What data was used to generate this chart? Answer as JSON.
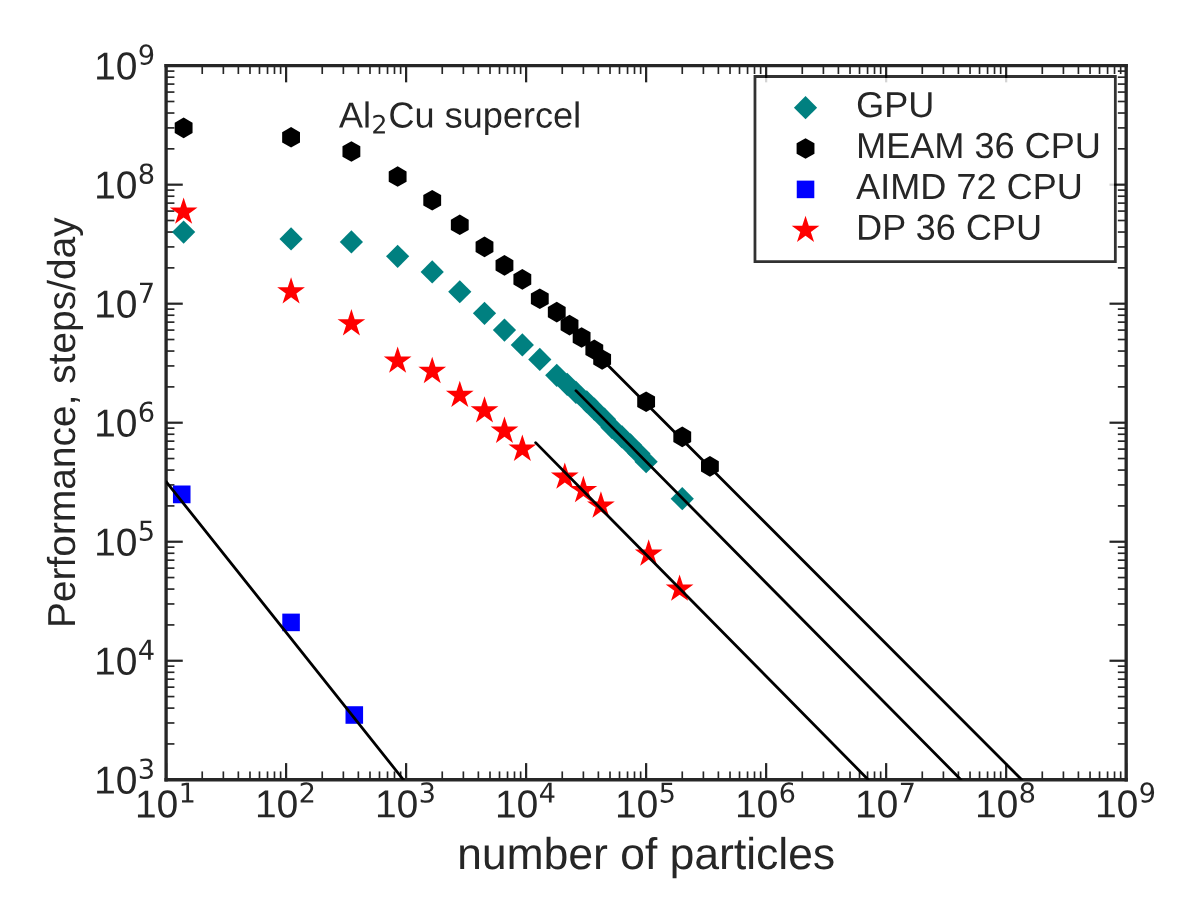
{
  "chart_data": {
    "type": "scatter",
    "xlabel": "number of particles",
    "ylabel": "Performance, steps/day",
    "annotations": [
      "Al$_{2}$Cu supercel"
    ],
    "log": "xy",
    "grid": false,
    "legend": "top right",
    "xlim": [
      10,
      1000000000
    ],
    "ylim": [
      1000,
      1000000000
    ],
    "xticks": [
      {
        "value": 10,
        "label": "10$^{1}$"
      },
      {
        "value": 100,
        "label": "10$^{2}$"
      },
      {
        "value": 1000,
        "label": "10$^{3}$"
      },
      {
        "value": 10000,
        "label": "10$^{4}$"
      },
      {
        "value": 100000,
        "label": "10$^{5}$"
      },
      {
        "value": 1000000,
        "label": "10$^{6}$"
      },
      {
        "value": 10000000,
        "label": "10$^{7}$"
      },
      {
        "value": 100000000,
        "label": "10$^{8}$"
      },
      {
        "value": 1000000000,
        "label": "10$^{9}$"
      }
    ],
    "yticks": [
      {
        "value": 1000,
        "label": "10$^{3}$"
      },
      {
        "value": 10000,
        "label": "10$^{4}$"
      },
      {
        "value": 100000,
        "label": "10$^{5}$"
      },
      {
        "value": 1000000,
        "label": "10$^{6}$"
      },
      {
        "value": 10000000,
        "label": "10$^{7}$"
      },
      {
        "value": 100000000,
        "label": "10$^{8}$"
      },
      {
        "value": 1000000000,
        "label": "10$^{9}$"
      }
    ],
    "series": [
      {
        "name": "GPU",
        "color": "#008080",
        "marker": "diamond",
        "x": [
          14,
          110,
          350,
          850,
          1650,
          2800,
          4500,
          6600,
          9300,
          13000,
          18000,
          22000,
          26000,
          32000,
          37000,
          45000,
          52000,
          63000,
          74000,
          87000,
          100000,
          200000
        ],
        "values": [
          40000000,
          35000000,
          33000000,
          25000000,
          18500000,
          12600000,
          8300000,
          6000000,
          4500000,
          3400000,
          2500000,
          2100000,
          1800000,
          1500000,
          1300000,
          1070000,
          910000,
          760000,
          650000,
          550000,
          470000,
          230000
        ]
      },
      {
        "name": "MEAM 36 CPU",
        "color": "#000000",
        "marker": "circle",
        "x": [
          14,
          110,
          350,
          850,
          1650,
          2800,
          4500,
          6600,
          9300,
          13000,
          18000,
          23000,
          29000,
          37000,
          43000,
          100000,
          200000,
          340000
        ],
        "values": [
          300000000,
          250000000,
          190000000,
          117000000,
          74000000,
          46000000,
          30000000,
          21000000,
          16000000,
          11000000,
          8500000,
          6600000,
          5200000,
          4100000,
          3400000,
          1500000,
          760000,
          430000
        ]
      },
      {
        "name": "AIMD 72 CPU",
        "color": "#0000ff",
        "marker": "square",
        "x": [
          13.5,
          110,
          370
        ],
        "values": [
          250000,
          21000,
          3500
        ]
      },
      {
        "name": "DP 36 CPU",
        "color": "#ff0000",
        "marker": "star",
        "x": [
          14,
          110,
          350,
          850,
          1650,
          2800,
          4500,
          6600,
          9300,
          21000,
          30000,
          42000,
          105000,
          190000
        ],
        "values": [
          59000000,
          12600000,
          6800000,
          3300000,
          2700000,
          1700000,
          1260000,
          850000,
          600000,
          350000,
          270000,
          200000,
          79000,
          40000
        ]
      },
      {
        "type": "line",
        "color": "#000000",
        "x": [
          43000,
          135000000
        ],
        "values": [
          3400000,
          1000
        ]
      },
      {
        "type": "line",
        "color": "#000000",
        "x": [
          26000,
          42000000
        ],
        "values": [
          1860000,
          1000
        ]
      },
      {
        "type": "line",
        "color": "#000000",
        "x": [
          12000,
          7100000
        ],
        "values": [
          680000,
          1000
        ]
      },
      {
        "type": "line",
        "color": "#000000",
        "x": [
          10,
          950
        ],
        "values": [
          320000,
          1000
        ]
      }
    ]
  }
}
